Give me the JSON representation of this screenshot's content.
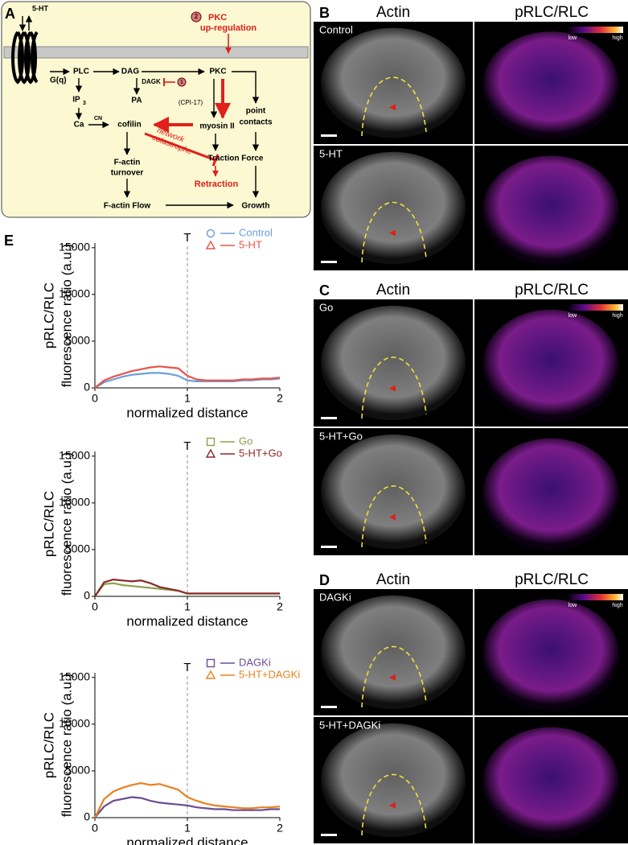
{
  "diagram": {
    "label": "A",
    "texts": [
      "5-HT",
      "PKC",
      "up-regulation",
      "G(q)",
      "PLC",
      "DAG",
      "PKC",
      "DAGK",
      "1",
      "2",
      "PA",
      "IP",
      "3",
      "(CPI-17)",
      "Ca",
      "CN",
      "cofilin",
      "myosin II",
      "point",
      "contacts",
      "network",
      "catastrophe",
      "Traction Force",
      "F-actin",
      "turnover",
      "Retraction",
      "F-actin Flow",
      "Growth"
    ]
  },
  "images": {
    "headers": [
      "Actin",
      "pRLC/RLC"
    ],
    "colorbar": [
      "low",
      "high"
    ],
    "panels": [
      {
        "label": "B",
        "rows": [
          "Control",
          "5-HT"
        ]
      },
      {
        "label": "C",
        "rows": [
          "Go",
          "5-HT+Go"
        ]
      },
      {
        "label": "D",
        "rows": [
          "DAGKi",
          "5-HT+DAGKi"
        ]
      }
    ]
  },
  "panel_e_label": "E",
  "chart_data": [
    {
      "type": "line",
      "xlabel": "normalized distance",
      "ylabel": [
        "pRLC/RLC",
        "fluorescence ratio (a.u.)"
      ],
      "annotation": {
        "x": 1,
        "text": "T"
      },
      "xlim": [
        0,
        2
      ],
      "ylim": [
        0,
        15500
      ],
      "xticks": [
        0,
        1,
        2
      ],
      "yticks": [
        0,
        5000,
        10000,
        15000
      ],
      "x": [
        0,
        0.1,
        0.2,
        0.3,
        0.4,
        0.5,
        0.6,
        0.7,
        0.8,
        0.9,
        1,
        1.1,
        1.2,
        1.3,
        1.4,
        1.5,
        1.6,
        1.7,
        1.8,
        1.9,
        2
      ],
      "series": [
        {
          "name": "Control",
          "color": "#6a9fd8",
          "marker": "circle",
          "values": [
            0,
            600,
            900,
            1200,
            1400,
            1500,
            1600,
            1600,
            1500,
            1300,
            800,
            700,
            700,
            700,
            700,
            700,
            800,
            800,
            900,
            900,
            1000
          ]
        },
        {
          "name": "5-HT",
          "color": "#e8544a",
          "marker": "triangle",
          "values": [
            0,
            800,
            1200,
            1500,
            1800,
            2000,
            2200,
            2300,
            2200,
            2100,
            1300,
            900,
            800,
            800,
            800,
            800,
            900,
            900,
            1000,
            1000,
            1100
          ]
        }
      ]
    },
    {
      "type": "line",
      "xlabel": "normalized distance",
      "ylabel": [
        "pRLC/RLC",
        "fluorescence ratio (a.u.)"
      ],
      "annotation": {
        "x": 1,
        "text": "T"
      },
      "xlim": [
        0,
        2
      ],
      "ylim": [
        0,
        15500
      ],
      "xticks": [
        0,
        1,
        2
      ],
      "yticks": [
        0,
        5000,
        10000,
        15000
      ],
      "x": [
        0,
        0.1,
        0.2,
        0.3,
        0.4,
        0.5,
        0.6,
        0.7,
        0.8,
        0.9,
        1,
        1.1,
        1.2,
        1.3,
        1.4,
        1.5,
        1.6,
        1.7,
        1.8,
        1.9,
        2
      ],
      "series": [
        {
          "name": "Go",
          "color": "#8aa34a",
          "marker": "square",
          "values": [
            0,
            1300,
            1400,
            1200,
            1100,
            1000,
            900,
            800,
            700,
            600,
            300,
            300,
            300,
            300,
            300,
            300,
            300,
            300,
            300,
            300,
            300
          ]
        },
        {
          "name": "5-HT+Go",
          "color": "#8b2a2a",
          "marker": "triangle",
          "values": [
            0,
            1500,
            1800,
            1700,
            1600,
            1700,
            1400,
            1000,
            800,
            600,
            300,
            300,
            300,
            300,
            300,
            300,
            300,
            300,
            300,
            300,
            300
          ]
        }
      ]
    },
    {
      "type": "line",
      "xlabel": "normalized distance",
      "ylabel": [
        "pRLC/RLC",
        "fluorescence ratio (a.u.)"
      ],
      "annotation": {
        "x": 1,
        "text": "T"
      },
      "xlim": [
        0,
        2
      ],
      "ylim": [
        0,
        15500
      ],
      "xticks": [
        0,
        1,
        2
      ],
      "yticks": [
        0,
        5000,
        10000,
        15000
      ],
      "x": [
        0,
        0.1,
        0.2,
        0.3,
        0.4,
        0.5,
        0.6,
        0.7,
        0.8,
        0.9,
        1,
        1.1,
        1.2,
        1.3,
        1.4,
        1.5,
        1.6,
        1.7,
        1.8,
        1.9,
        2
      ],
      "series": [
        {
          "name": "DAGKi",
          "color": "#6a4c93",
          "marker": "square",
          "values": [
            0,
            1200,
            1800,
            2000,
            2200,
            2100,
            1800,
            1600,
            1500,
            1400,
            1300,
            1100,
            1000,
            900,
            900,
            800,
            800,
            800,
            800,
            900,
            900
          ]
        },
        {
          "name": "5-HT+DAGKi",
          "color": "#e8821e",
          "marker": "triangle",
          "values": [
            0,
            2000,
            2800,
            3200,
            3500,
            3700,
            3500,
            3600,
            3300,
            3000,
            2200,
            1800,
            1500,
            1300,
            1200,
            1100,
            1000,
            1000,
            1100,
            1100,
            1200
          ]
        }
      ]
    }
  ]
}
